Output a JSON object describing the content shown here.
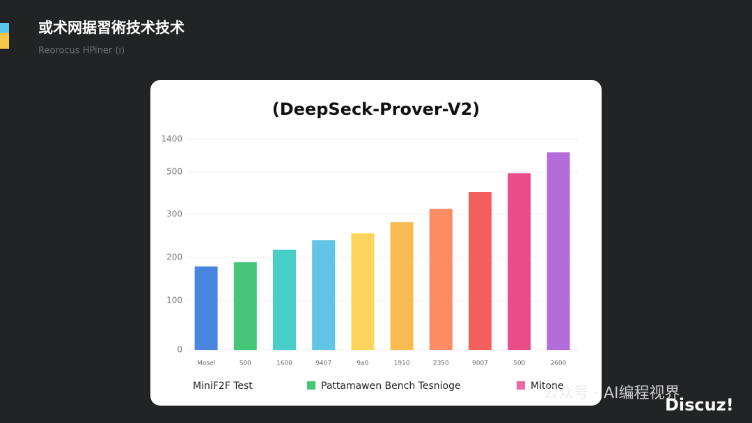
{
  "header": {
    "title": "或术网据習術技术技术",
    "subtitle": "Reorocus HPiner (i)"
  },
  "chart_data": {
    "type": "bar",
    "title": "(DeepSeck-Prover-V2)",
    "categories": [
      "Mosel",
      "S00",
      "1600",
      "9407",
      "9a0",
      "1910",
      "2350",
      "9007",
      "500",
      "2600"
    ],
    "values": [
      179,
      189,
      218,
      240,
      256,
      282,
      326,
      405,
      493,
      1036
    ],
    "colors": [
      "#4a86e0",
      "#44c676",
      "#48cdc8",
      "#62c4e6",
      "#fdd45c",
      "#f7bb52",
      "#fb8c64",
      "#f2605e",
      "#ea4c8a",
      "#b46cd8"
    ],
    "ylim": [
      0,
      1400
    ],
    "yticks": [
      0,
      100,
      200,
      300,
      500,
      1400
    ],
    "grid": true,
    "legend": [
      {
        "name": "MiniF2F Test",
        "color": null
      },
      {
        "name": "Pattamawen Bench Tesnioge",
        "color": "#44c676"
      },
      {
        "name": "Mitone",
        "color": "#ea6aa8"
      }
    ]
  },
  "watermark": {
    "account": "公众号 · AI编程视界",
    "site": "Discuz!"
  }
}
